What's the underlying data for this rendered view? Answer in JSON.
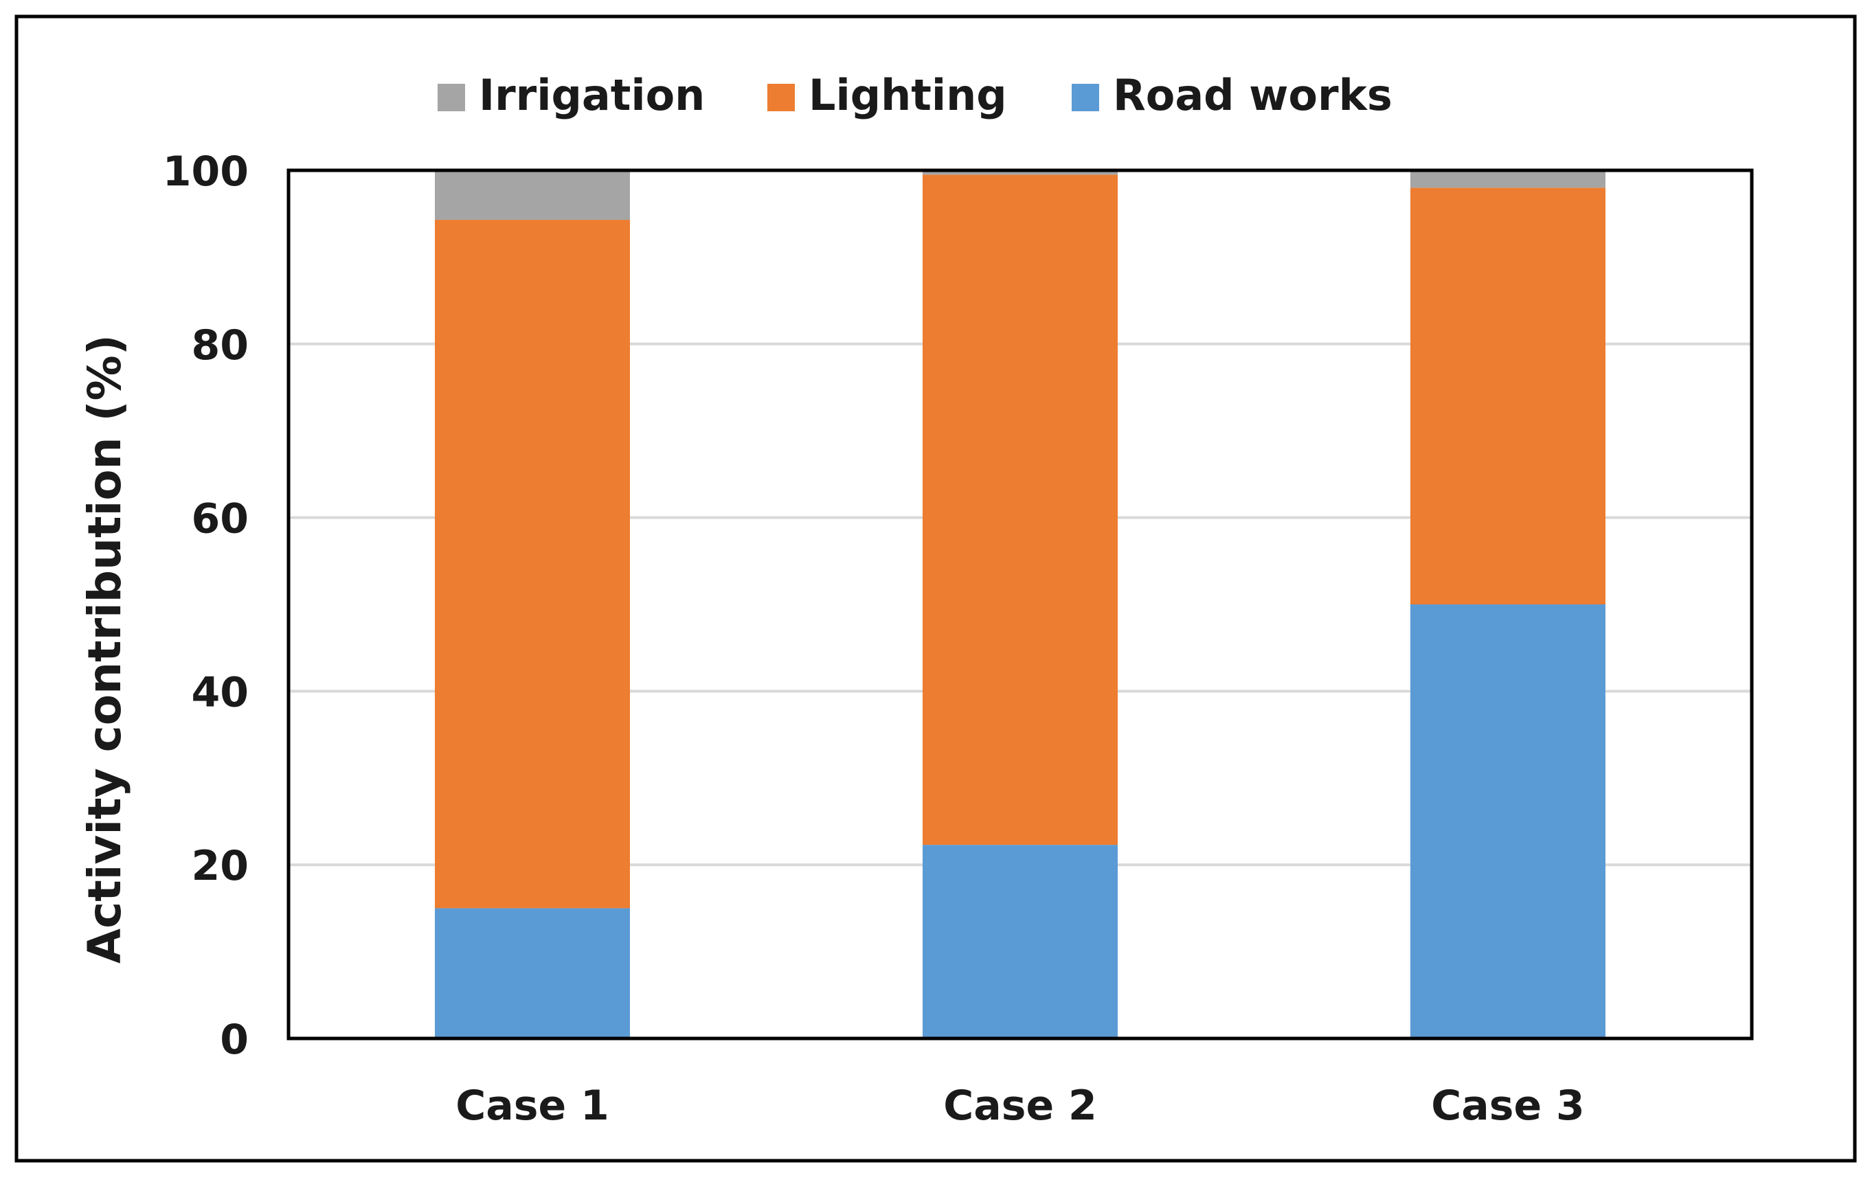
{
  "chart_data": {
    "type": "bar",
    "stacked": true,
    "categories": [
      "Case 1",
      "Case 2",
      "Case 3"
    ],
    "series": [
      {
        "name": "Road works",
        "values": [
          15,
          22.3,
          50
        ],
        "color": "#5b9bd5"
      },
      {
        "name": "Lighting",
        "values": [
          79.3,
          77.2,
          48
        ],
        "color": "#ed7d31"
      },
      {
        "name": "Irrigation",
        "values": [
          5.7,
          0.5,
          2
        ],
        "color": "#a5a5a5"
      }
    ],
    "legend_order": [
      "Irrigation",
      "Lighting",
      "Road works"
    ],
    "legend_position": "top",
    "ylabel": "Activity contribution (%)",
    "ylim": [
      0,
      100
    ],
    "yticks": [
      0,
      20,
      40,
      60,
      80,
      100
    ],
    "grid": true,
    "gridline_color": "#d9d9d9"
  }
}
